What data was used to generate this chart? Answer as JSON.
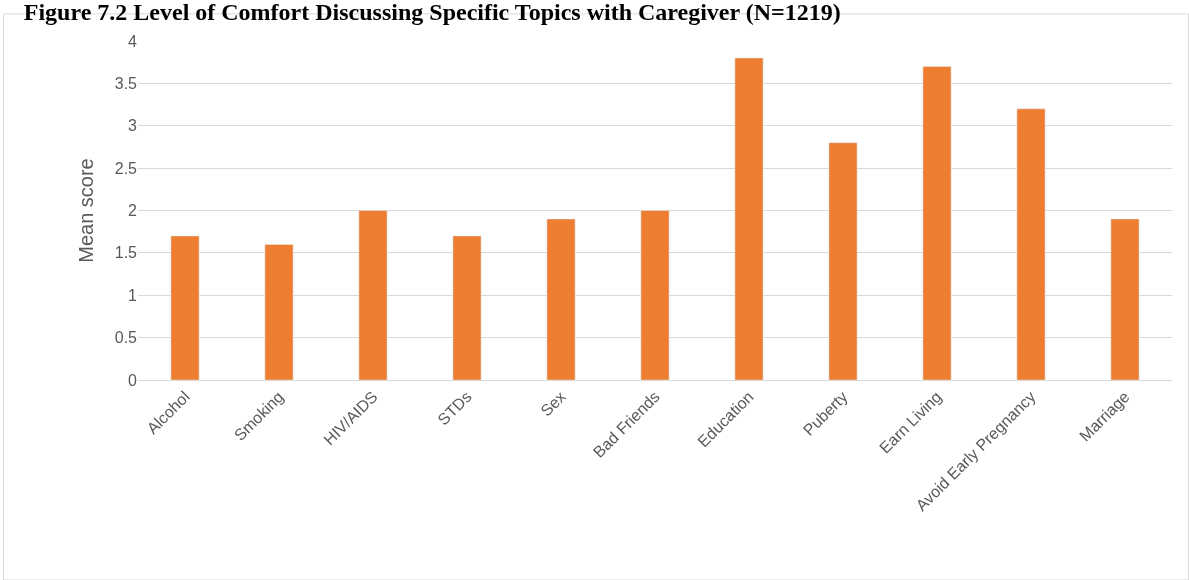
{
  "chart_data": {
    "type": "bar",
    "title": "Figure 7.2 Level of Comfort Discussing Specific Topics with Caregiver (N=1219)",
    "ylabel": "Mean score",
    "categories": [
      "Alcohol",
      "Smoking",
      "HIV/AIDS",
      "STDs",
      "Sex",
      "Bad Friends",
      "Education",
      "Puberty",
      "Earn Living",
      "Avoid Early Pregnancy",
      "Marriage"
    ],
    "values": [
      1.7,
      1.6,
      2.0,
      1.7,
      1.9,
      2.0,
      3.8,
      2.8,
      3.7,
      3.2,
      1.9
    ],
    "color": "#ed7d31",
    "ylim": [
      0,
      4
    ],
    "yticks": [
      0,
      {
        "value": 0.5,
        "label": "0.5"
      },
      {
        "value": 1,
        "label": "1"
      },
      {
        "value": 1.5,
        "label": "1.5"
      },
      {
        "value": 2,
        "label": "2"
      },
      {
        "value": 2.5,
        "label": "2.5"
      },
      {
        "value": 3,
        "label": "3"
      },
      {
        "value": 3.5,
        "label": "3.5"
      },
      {
        "value": 4,
        "label": "4"
      }
    ],
    "grid": "y"
  }
}
